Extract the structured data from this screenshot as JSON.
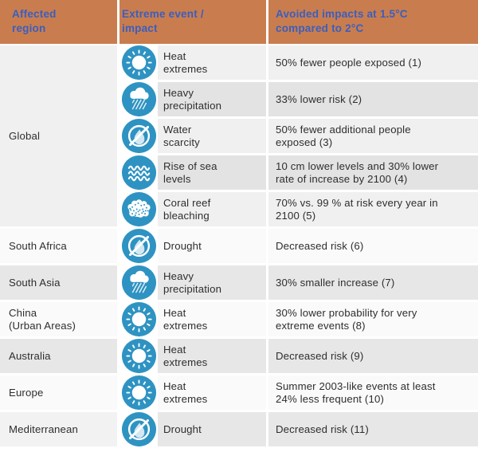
{
  "colors": {
    "header_bg": "#c97d4e",
    "header_text": "#3b5ebe",
    "icon_blue": "#2e93c2",
    "body_text": "#2e2e2e",
    "drop_fill": "#d4e8f2"
  },
  "header": {
    "col_region": "Affected\nregion",
    "col_event": "Extreme event /\nimpact",
    "col_impact": "Avoided impacts at 1.5°C\ncompared to 2°C"
  },
  "regions": [
    {
      "name": "Global",
      "row": 1,
      "span": 5,
      "tone": "#f0f0f0"
    },
    {
      "name": "South Africa",
      "row": 6,
      "span": 1,
      "tone": "#fafafa"
    },
    {
      "name": "South Asia",
      "row": 7,
      "span": 1,
      "tone": "#e7e7e7"
    },
    {
      "name": "China\n(Urban Areas)",
      "row": 8,
      "span": 1,
      "tone": "#fafafa"
    },
    {
      "name": "Australia",
      "row": 9,
      "span": 1,
      "tone": "#e7e7e7"
    },
    {
      "name": "Europe",
      "row": 10,
      "span": 1,
      "tone": "#fafafa"
    },
    {
      "name": "Mediterranean",
      "row": 11,
      "span": 1,
      "tone": "#f2f2f2"
    }
  ],
  "rows": [
    {
      "icon": "sun-icon",
      "event": "Heat\nextremes",
      "impact": "50% fewer people exposed (1)",
      "tone": "#f0f0f0"
    },
    {
      "icon": "rain-icon",
      "event": "Heavy\nprecipitation",
      "impact": "33% lower risk (2)",
      "tone": "#e3e3e3"
    },
    {
      "icon": "water-scarcity-icon",
      "event": "Water\nscarcity",
      "impact": "50% fewer additional people\nexposed (3)",
      "tone": "#f0f0f0"
    },
    {
      "icon": "sea-level-icon",
      "event": "Rise of sea\nlevels",
      "impact": "10 cm lower levels and 30% lower\nrate of increase by 2100 (4)",
      "tone": "#e3e3e3"
    },
    {
      "icon": "coral-icon",
      "event": "Coral reef\nbleaching",
      "impact": "70% vs. 99 % at risk every year in\n2100 (5)",
      "tone": "#f0f0f0"
    },
    {
      "icon": "drought-icon",
      "event": "Drought",
      "impact": "Decreased risk (6)",
      "tone": "#fafafa"
    },
    {
      "icon": "rain-icon",
      "event": "Heavy\nprecipitation",
      "impact": "30% smaller increase (7)",
      "tone": "#e7e7e7"
    },
    {
      "icon": "sun-icon",
      "event": "Heat\nextremes",
      "impact": "30% lower probability for very\nextreme events (8)",
      "tone": "#fafafa"
    },
    {
      "icon": "sun-icon",
      "event": "Heat\nextremes",
      "impact": "Decreased risk (9)",
      "tone": "#e7e7e7"
    },
    {
      "icon": "sun-icon",
      "event": "Heat\nextremes",
      "impact": "Summer 2003-like events at least\n24% less frequent (10)",
      "tone": "#fafafa"
    },
    {
      "icon": "drought-icon",
      "event": "Drought",
      "impact": "Decreased risk (11)",
      "tone": "#e7e7e7"
    }
  ]
}
